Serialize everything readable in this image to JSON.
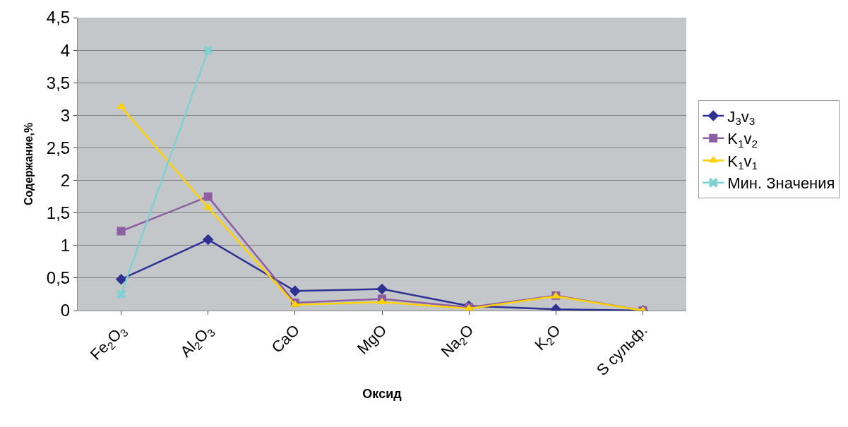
{
  "chart_data": {
    "type": "line",
    "xlabel": "Оксид",
    "ylabel": "Содержание,%",
    "categories": [
      "Fe$_{2}$O$_{3}$",
      "Al$_{2}$O$_{3}$",
      "CaO",
      "MgO",
      "Na$_{2}$O",
      "K$_{2}$O",
      "S сульф."
    ],
    "series": [
      {
        "name": "J$_{3}$v$_{3}$",
        "color": "#2e3192",
        "marker": "diamond",
        "values": [
          0.48,
          1.09,
          0.3,
          0.33,
          0.07,
          0.02,
          0
        ]
      },
      {
        "name": "K$_{1}$v$_{2}$",
        "color": "#8e5ea2",
        "marker": "square",
        "values": [
          1.22,
          1.75,
          0.12,
          0.18,
          0.05,
          0.23,
          0
        ]
      },
      {
        "name": "K$_{1}$v$_{1}$",
        "color": "#ffd200",
        "marker": "triangle",
        "values": [
          3.13,
          1.58,
          0.09,
          0.13,
          0.03,
          0.22,
          0
        ]
      },
      {
        "name": "Мин. Значения",
        "color": "#7fd0d0",
        "marker": "cross",
        "values": [
          0.25,
          4.0,
          null,
          null,
          null,
          null,
          null
        ]
      }
    ],
    "ylim": [
      0,
      4.5
    ],
    "yticks": [
      0,
      {
        "value": 0.5,
        "label": "0,5"
      },
      1,
      {
        "value": 1.5,
        "label": "1,5"
      },
      2,
      {
        "value": 2.5,
        "label": "2,5"
      },
      3,
      {
        "value": 3.5,
        "label": "3,5"
      },
      4,
      {
        "value": 4.5,
        "label": "4,5"
      }
    ],
    "grid": "y",
    "legend": "right"
  }
}
